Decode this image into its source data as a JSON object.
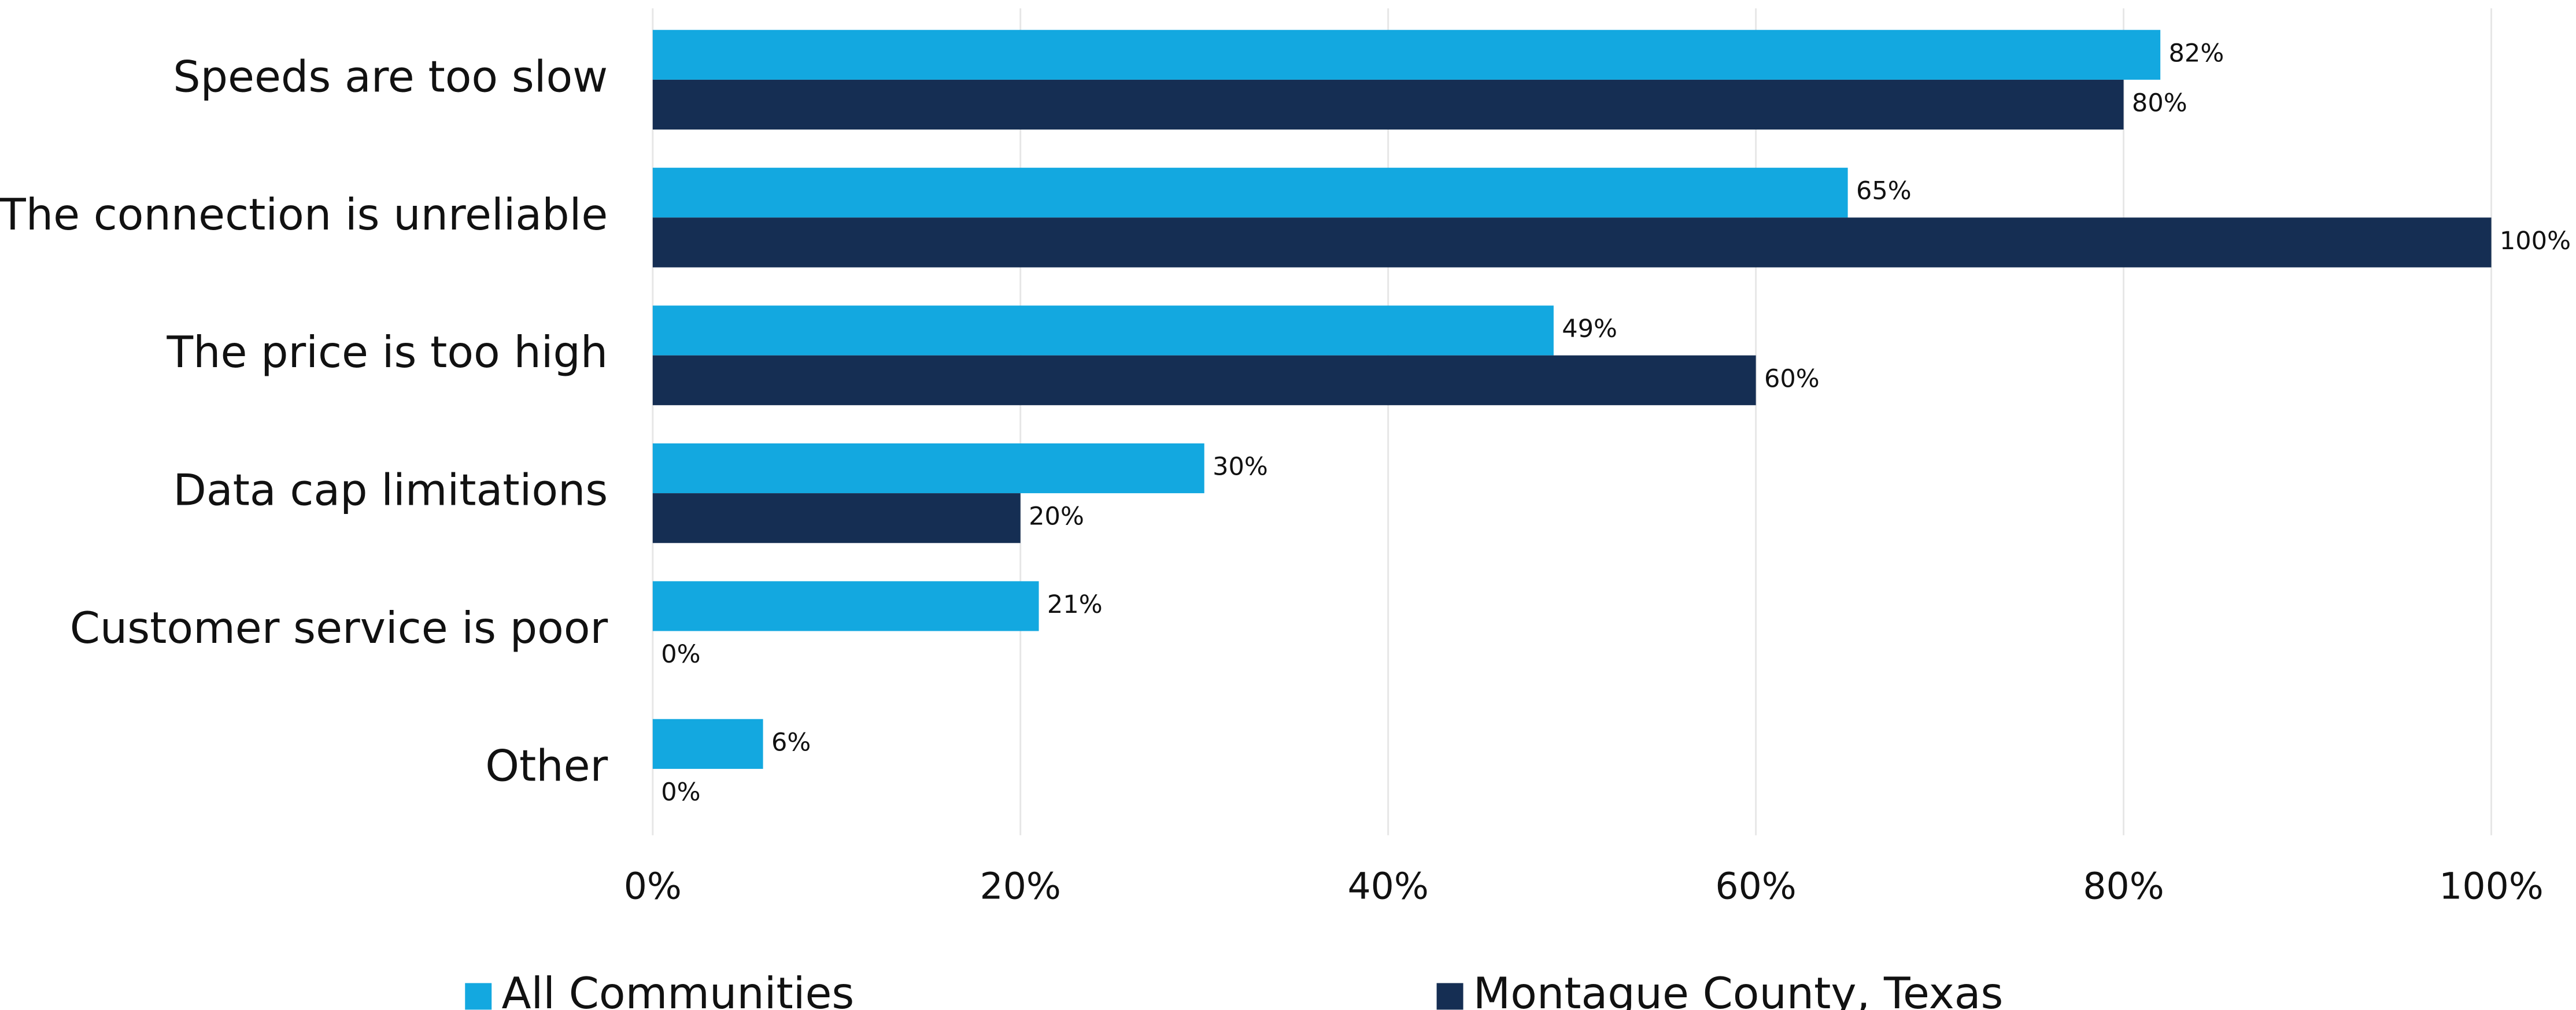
{
  "chart_data": {
    "type": "bar",
    "orientation": "horizontal",
    "categories": [
      "Speeds are too slow",
      "The connection is unreliable",
      "The price is too high",
      "Data cap limitations",
      "Customer service is poor",
      "Other"
    ],
    "series": [
      {
        "name": "All Communities",
        "color": "#13a8e0",
        "values": [
          82,
          65,
          49,
          30,
          21,
          6
        ],
        "value_labels": [
          "82%",
          "65%",
          "49%",
          "30%",
          "21%",
          "6%"
        ]
      },
      {
        "name": "Montague County, Texas",
        "color": "#152e53",
        "values": [
          80,
          100,
          60,
          20,
          0,
          0
        ],
        "value_labels": [
          "80%",
          "100%",
          "60%",
          "20%",
          "0%",
          "0%"
        ]
      }
    ],
    "xlim": [
      0,
      100
    ],
    "xticks": [
      {
        "value": 0,
        "label": "0%"
      },
      {
        "value": 20,
        "label": "20%"
      },
      {
        "value": 40,
        "label": "40%"
      },
      {
        "value": 60,
        "label": "60%"
      },
      {
        "value": 80,
        "label": "80%"
      },
      {
        "value": 100,
        "label": "100%"
      }
    ],
    "grid": true,
    "legend": "bottom"
  }
}
